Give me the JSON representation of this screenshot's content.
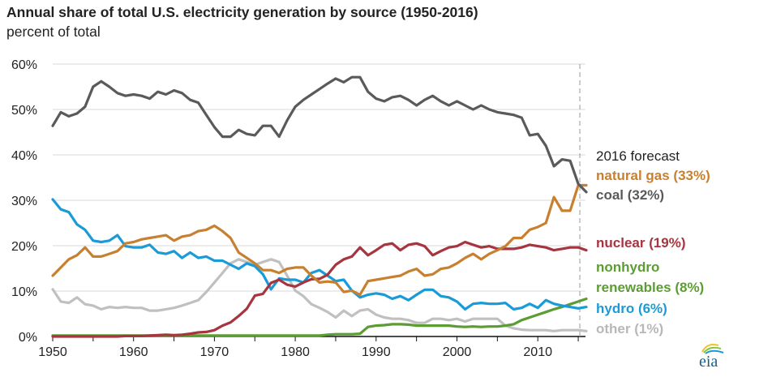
{
  "chart_data": {
    "type": "line",
    "title": "Annual share of total U.S. electricity generation by source (1950-2016)",
    "subtitle": "percent of total",
    "xlabel": "",
    "ylabel": "percent of total",
    "xlim": [
      1950,
      2016
    ],
    "ylim": [
      0,
      60
    ],
    "grid": true,
    "x_ticks": [
      "1950",
      "1960",
      "1970",
      "1980",
      "1990",
      "2000",
      "2010"
    ],
    "y_ticks": [
      "0%",
      "10%",
      "20%",
      "30%",
      "40%",
      "50%",
      "60%"
    ],
    "forecast_marker_year": 2015.2,
    "legend_header": "2016 forecast",
    "x_start": 1950,
    "series": [
      {
        "name": "coal",
        "label": "coal (32%)",
        "color": "#5a5a5a",
        "values": [
          46.4,
          49.4,
          48.5,
          49.1,
          50.6,
          55.0,
          56.2,
          55.0,
          53.6,
          53.0,
          53.3,
          53.0,
          52.4,
          53.9,
          53.3,
          54.2,
          53.6,
          52.1,
          51.5,
          48.8,
          46.1,
          44.0,
          44.0,
          45.5,
          44.6,
          44.3,
          46.4,
          46.4,
          44.0,
          47.6,
          50.6,
          52.1,
          53.3,
          54.5,
          55.7,
          56.8,
          56.0,
          57.1,
          57.1,
          53.9,
          52.4,
          51.8,
          52.7,
          53.0,
          52.1,
          50.9,
          52.1,
          53.0,
          51.8,
          50.9,
          51.8,
          50.9,
          50.0,
          50.9,
          50.0,
          49.4,
          49.1,
          48.8,
          48.2,
          44.3,
          44.6,
          42.0,
          37.5,
          39.0,
          38.7,
          33.6,
          31.8
        ]
      },
      {
        "name": "natural gas",
        "label": "natural gas (33%)",
        "color": "#c7802f",
        "values": [
          13.4,
          15.2,
          17.0,
          17.9,
          19.6,
          17.6,
          17.6,
          18.2,
          18.8,
          20.5,
          20.8,
          21.4,
          21.7,
          22.0,
          22.3,
          21.1,
          22.0,
          22.3,
          23.2,
          23.5,
          24.4,
          23.2,
          21.7,
          18.5,
          17.3,
          16.1,
          14.6,
          14.6,
          14.0,
          14.9,
          15.2,
          15.2,
          13.4,
          11.9,
          12.1,
          11.9,
          9.8,
          10.1,
          9.2,
          12.2,
          12.5,
          12.8,
          13.1,
          13.4,
          14.3,
          14.9,
          13.4,
          13.7,
          14.9,
          15.2,
          16.1,
          17.3,
          18.2,
          17.0,
          18.2,
          19.0,
          19.9,
          21.7,
          21.7,
          23.5,
          24.1,
          25.0,
          30.7,
          27.7,
          27.7,
          33.3,
          33.3
        ]
      },
      {
        "name": "nuclear",
        "label": "nuclear (19%)",
        "color": "#a6353f",
        "values": [
          0,
          0,
          0,
          0,
          0,
          0,
          0,
          0,
          0,
          0.1,
          0.1,
          0.1,
          0.2,
          0.3,
          0.4,
          0.3,
          0.4,
          0.6,
          0.9,
          1.0,
          1.4,
          2.4,
          3.1,
          4.5,
          6.1,
          9.0,
          9.4,
          11.8,
          12.5,
          11.4,
          11.0,
          11.9,
          12.6,
          12.7,
          13.6,
          15.8,
          17.0,
          17.6,
          19.6,
          17.9,
          19.0,
          20.2,
          20.5,
          19.0,
          20.2,
          20.5,
          19.9,
          17.9,
          18.8,
          19.6,
          19.9,
          20.8,
          20.2,
          19.6,
          19.9,
          19.3,
          19.3,
          19.3,
          19.6,
          20.2,
          19.9,
          19.6,
          19.0,
          19.3,
          19.6,
          19.6,
          19.0
        ]
      },
      {
        "name": "nonhydro renewables",
        "label_line1": "nonhydro",
        "label": "renewables (8%)",
        "color": "#5b9d32",
        "values": [
          0.2,
          0.2,
          0.2,
          0.2,
          0.2,
          0.2,
          0.2,
          0.2,
          0.2,
          0.2,
          0.2,
          0.2,
          0.2,
          0.2,
          0.2,
          0.2,
          0.2,
          0.2,
          0.2,
          0.2,
          0.2,
          0.2,
          0.2,
          0.2,
          0.2,
          0.2,
          0.2,
          0.2,
          0.2,
          0.2,
          0.2,
          0.2,
          0.2,
          0.2,
          0.4,
          0.5,
          0.5,
          0.5,
          0.6,
          2.1,
          2.4,
          2.5,
          2.7,
          2.7,
          2.6,
          2.4,
          2.4,
          2.4,
          2.4,
          2.4,
          2.2,
          2.1,
          2.2,
          2.1,
          2.2,
          2.2,
          2.4,
          2.7,
          3.6,
          4.2,
          4.8,
          5.4,
          6.0,
          6.5,
          7.1,
          7.7,
          8.3
        ]
      },
      {
        "name": "hydro",
        "label": "hydro (6%)",
        "color": "#1a9bd7",
        "values": [
          30.2,
          28.0,
          27.4,
          24.7,
          23.5,
          21.1,
          20.8,
          21.1,
          22.3,
          19.9,
          19.6,
          19.6,
          20.2,
          18.5,
          18.2,
          18.8,
          17.3,
          18.5,
          17.3,
          17.6,
          16.7,
          16.7,
          15.8,
          14.9,
          16.1,
          15.5,
          13.7,
          10.4,
          12.8,
          12.5,
          12.5,
          11.9,
          14.0,
          14.6,
          13.4,
          12.2,
          12.5,
          10.1,
          8.6,
          9.2,
          9.5,
          9.2,
          8.3,
          8.9,
          8.0,
          9.2,
          10.3,
          10.3,
          8.9,
          8.6,
          7.7,
          6.0,
          7.2,
          7.4,
          7.2,
          7.2,
          7.4,
          6.0,
          6.3,
          7.2,
          6.3,
          8.0,
          7.2,
          6.8,
          6.5,
          6.2,
          6.5
        ]
      },
      {
        "name": "other",
        "label": "other (1%)",
        "color": "#c0c0c0",
        "values": [
          10.4,
          7.7,
          7.4,
          8.6,
          7.1,
          6.8,
          6.0,
          6.5,
          6.3,
          6.5,
          6.3,
          6.3,
          5.7,
          5.7,
          6.0,
          6.3,
          6.8,
          7.4,
          8.0,
          9.8,
          11.9,
          14.0,
          16.1,
          17.0,
          16.4,
          15.8,
          16.4,
          17.0,
          16.4,
          13.4,
          10.1,
          8.9,
          7.1,
          6.3,
          5.4,
          4.2,
          5.7,
          4.5,
          5.7,
          6.0,
          4.8,
          4.2,
          3.9,
          3.9,
          3.6,
          3.0,
          3.0,
          3.9,
          3.9,
          3.6,
          3.9,
          3.3,
          3.9,
          3.9,
          3.9,
          3.9,
          2.4,
          1.8,
          1.5,
          1.4,
          1.4,
          1.4,
          1.2,
          1.4,
          1.4,
          1.4,
          1.2
        ]
      }
    ]
  },
  "logo": {
    "text": "eia"
  }
}
